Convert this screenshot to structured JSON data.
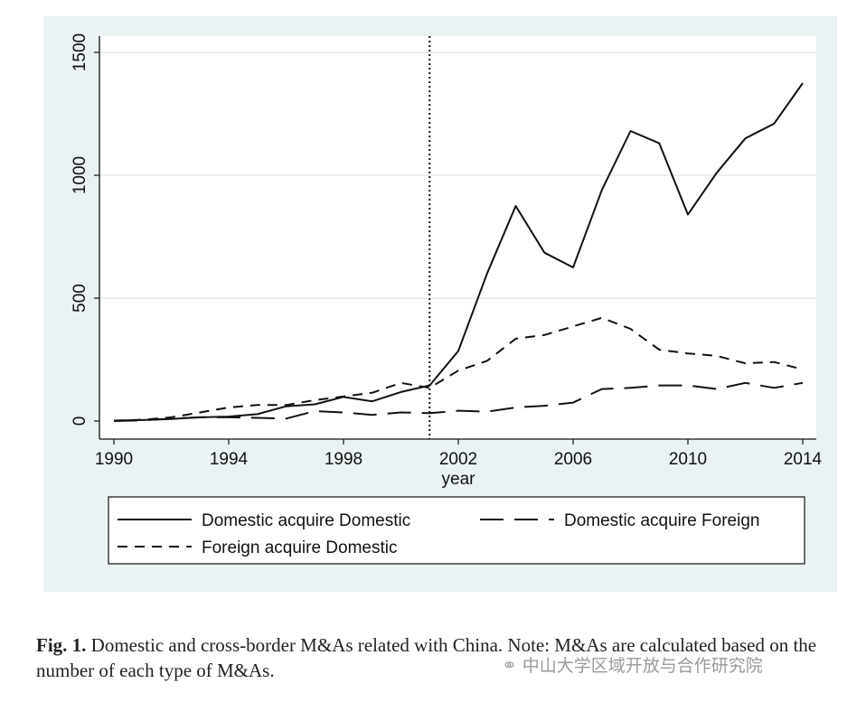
{
  "chart_data": {
    "type": "line",
    "xlabel": "year",
    "ylabel": "",
    "xlim": [
      1990,
      2014
    ],
    "ylim": [
      0,
      1500
    ],
    "x_ticks": [
      "1990",
      "1994",
      "1998",
      "2002",
      "2006",
      "2010",
      "2014"
    ],
    "y_ticks": [
      "0",
      "500",
      "1000",
      "1500"
    ],
    "vline": 2001,
    "grid": true,
    "legend_position": "bottom",
    "x": [
      1990,
      1991,
      1992,
      1993,
      1994,
      1995,
      1996,
      1997,
      1998,
      1999,
      2000,
      2001,
      2002,
      2003,
      2004,
      2005,
      2006,
      2007,
      2008,
      2009,
      2010,
      2011,
      2012,
      2013,
      2014
    ],
    "series": [
      {
        "name": "Domestic acquire Domestic",
        "style": "solid",
        "values": [
          2,
          4,
          8,
          15,
          18,
          28,
          60,
          68,
          98,
          80,
          118,
          145,
          285,
          600,
          875,
          685,
          625,
          940,
          1180,
          1130,
          840,
          1010,
          1150,
          1210,
          1375
        ]
      },
      {
        "name": "Domestic acquire Foreign",
        "style": "longdash",
        "values": [
          0,
          3,
          10,
          15,
          15,
          13,
          10,
          40,
          35,
          25,
          35,
          32,
          42,
          38,
          55,
          62,
          75,
          130,
          135,
          145,
          145,
          130,
          155,
          135,
          155
        ]
      },
      {
        "name": "Foreign acquire Domestic",
        "style": "shortdash",
        "values": [
          2,
          5,
          15,
          35,
          55,
          65,
          65,
          85,
          100,
          115,
          155,
          135,
          205,
          245,
          335,
          350,
          385,
          420,
          375,
          290,
          275,
          265,
          235,
          240,
          210
        ]
      }
    ]
  },
  "caption": {
    "label": "Fig. 1.",
    "text": " Domestic and cross-border M&As related with China. Note: M&As are calculated based on the number of each type of M&As."
  },
  "watermark": {
    "text": "中山大学区域开放与合作研究院",
    "icon": "wechat-icon"
  },
  "colors": {
    "background": "#eaf2f3",
    "plot": "#ffffff",
    "line": "#111111"
  }
}
